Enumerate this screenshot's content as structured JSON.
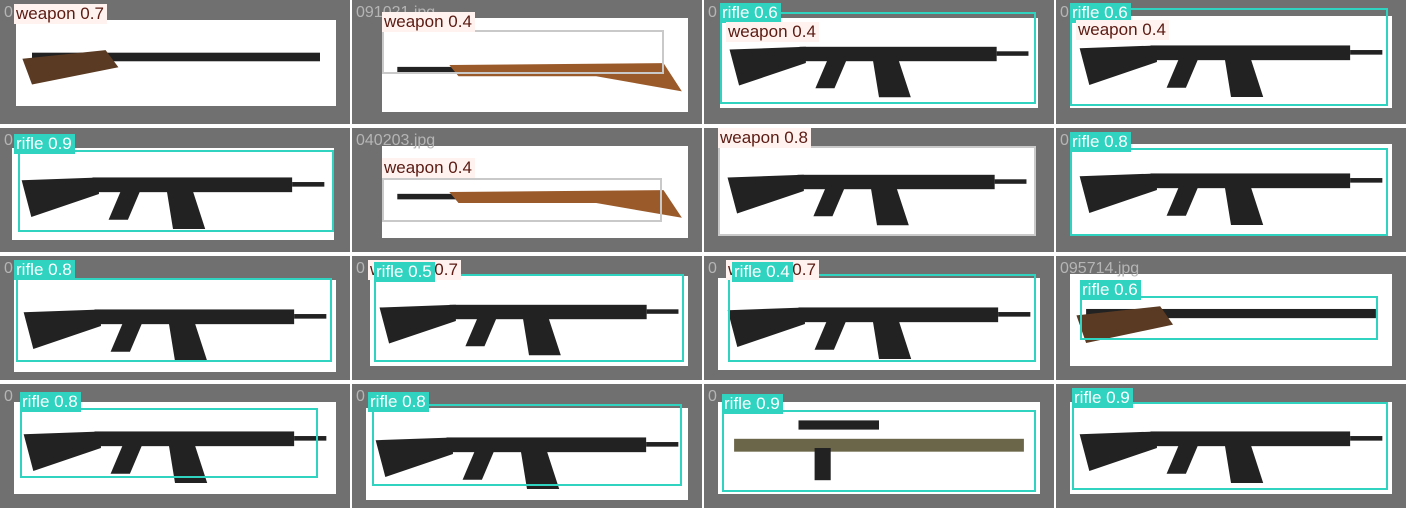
{
  "colors": {
    "tile_background": "#707070",
    "rifle_box": "#2fd3bf",
    "weapon_label_bg": "#fff2ef",
    "weapon_label_text": "#5a1a12",
    "filename_text": "#b5b5b5"
  },
  "tiles": [
    {
      "filename": "0",
      "detections": [
        {
          "label": "weapon 0.7",
          "class": "weapon"
        }
      ]
    },
    {
      "filename": "091021.jpg",
      "detections": [
        {
          "label": "weapon 0.4",
          "class": "weapon"
        }
      ]
    },
    {
      "filename": "0",
      "detections": [
        {
          "label": "rifle 0.6",
          "class": "rifle"
        },
        {
          "label": "weapon 0.4",
          "class": "weapon"
        }
      ]
    },
    {
      "filename": "0",
      "detections": [
        {
          "label": "rifle 0.6",
          "class": "rifle"
        },
        {
          "label": "weapon 0.4",
          "class": "weapon"
        }
      ]
    },
    {
      "filename": "0",
      "detections": [
        {
          "label": "rifle 0.9",
          "class": "rifle"
        }
      ]
    },
    {
      "filename": "040203.jpg",
      "detections": [
        {
          "label": "weapon 0.4",
          "class": "weapon"
        }
      ]
    },
    {
      "filename": "",
      "detections": [
        {
          "label": "weapon 0.8",
          "class": "weapon"
        }
      ]
    },
    {
      "filename": "0",
      "detections": [
        {
          "label": "rifle 0.8",
          "class": "rifle"
        }
      ]
    },
    {
      "filename": "0",
      "detections": [
        {
          "label": "rifle 0.8",
          "class": "rifle"
        }
      ]
    },
    {
      "filename": "0",
      "detections": [
        {
          "label": "weapon 0.7",
          "class": "weapon"
        },
        {
          "label": "rifle 0.5",
          "class": "rifle"
        }
      ]
    },
    {
      "filename": "0",
      "detections": [
        {
          "label": "weapon 0.7",
          "class": "weapon"
        },
        {
          "label": "rifle 0.4",
          "class": "rifle"
        }
      ]
    },
    {
      "filename": "095714.jpg",
      "detections": [
        {
          "label": "rifle 0.6",
          "class": "rifle"
        }
      ]
    },
    {
      "filename": "0",
      "detections": [
        {
          "label": "rifle 0.8",
          "class": "rifle"
        }
      ]
    },
    {
      "filename": "0",
      "detections": [
        {
          "label": "rifle 0.8",
          "class": "rifle"
        }
      ]
    },
    {
      "filename": "0",
      "detections": [
        {
          "label": "rifle 0.9",
          "class": "rifle"
        }
      ]
    },
    {
      "filename": "",
      "detections": [
        {
          "label": "rifle 0.9",
          "class": "rifle"
        }
      ]
    }
  ]
}
